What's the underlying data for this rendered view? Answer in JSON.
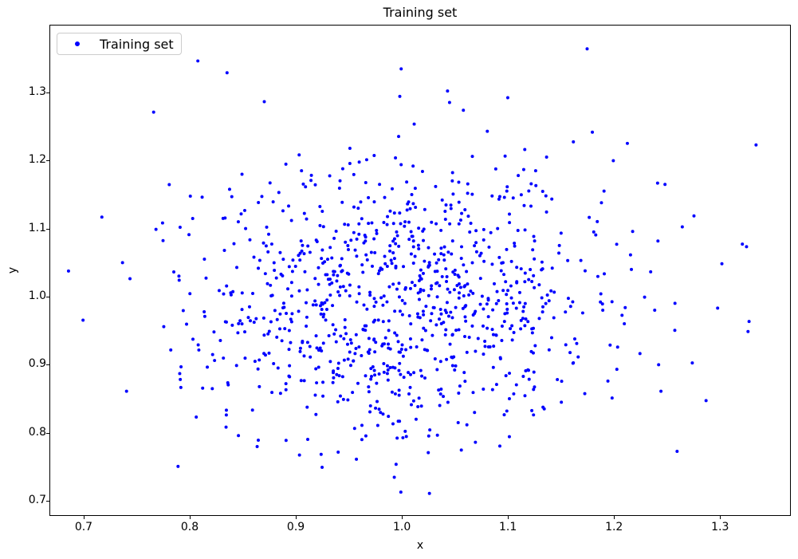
{
  "figure": {
    "title": "Training set",
    "background_color": "#ffffff"
  },
  "axes": {
    "xlabel": "x",
    "ylabel": "y",
    "spine_color": "#000000",
    "tick_color": "#000000",
    "text_color": "#000000",
    "grid": false
  },
  "legend": {
    "label": "Training set",
    "position": "upper-left",
    "marker_color": "#0000ff",
    "border_color": "#cccccc",
    "background_color": "#ffffff"
  },
  "chart_data": {
    "type": "scatter",
    "title": "Training set",
    "xlabel": "x",
    "ylabel": "y",
    "grid": false,
    "legend_position": "upper left",
    "legend_entries": [
      "Training set"
    ],
    "xlim": [
      0.6677,
      1.3667
    ],
    "ylim": [
      0.678,
      1.3994
    ],
    "x_ticks": [
      0.7,
      0.8,
      0.9,
      1.0,
      1.1,
      1.2,
      1.3
    ],
    "x_tick_labels": [
      "0.7",
      "0.8",
      "0.9",
      "1.0",
      "1.1",
      "1.2",
      "1.3"
    ],
    "y_ticks": [
      0.7,
      0.8,
      0.9,
      1.0,
      1.1,
      1.2,
      1.3
    ],
    "y_tick_labels": [
      "0.7",
      "0.8",
      "0.9",
      "1.0",
      "1.1",
      "1.2",
      "1.3"
    ],
    "series": [
      {
        "name": "Training set",
        "color": "#0000ff",
        "marker": "circle-dot",
        "marker_diameter_px": 4,
        "n_points": 1000,
        "distribution": {
          "type": "bivariate-gaussian",
          "mean": [
            1.0,
            1.0
          ],
          "std": [
            0.1,
            0.105
          ],
          "seed": 7
        },
        "sampled_points": [
          [
            0.6987,
            0.9653
          ],
          [
            0.7165,
            1.1172
          ],
          [
            0.7654,
            1.2718
          ],
          [
            0.736,
            1.05
          ],
          [
            1.3346,
            1.2234
          ],
          [
            1.3256,
            1.0735
          ],
          [
            1.328,
            0.9634
          ],
          [
            1.26,
            0.772
          ],
          [
            1.218,
            1.096
          ],
          [
            1.175,
            1.365
          ],
          [
            1.162,
            1.228
          ],
          [
            0.999,
            0.712
          ],
          [
            1.026,
            0.71
          ],
          [
            0.998,
            1.295
          ],
          [
            1.1,
            1.293
          ],
          [
            1.045,
            1.286
          ]
        ]
      }
    ]
  }
}
